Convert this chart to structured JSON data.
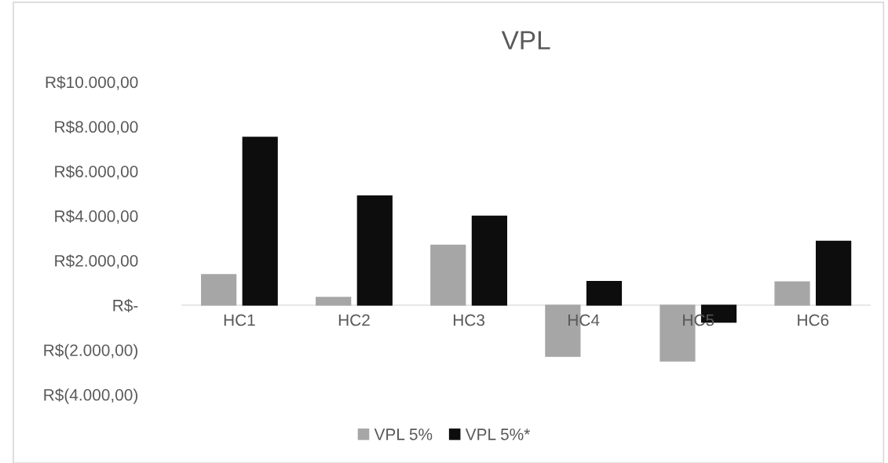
{
  "chart_data": {
    "type": "bar",
    "title": "VPL",
    "categories": [
      "HC1",
      "HC2",
      "HC3",
      "HC4",
      "HC5",
      "HC6"
    ],
    "series": [
      {
        "name": "VPL 5%",
        "color": "#a6a6a6",
        "values": [
          1370,
          350,
          2690,
          -2290,
          -2500,
          1040
        ]
      },
      {
        "name": "VPL 5%*",
        "color": "#0d0d0d",
        "values": [
          7520,
          4890,
          3990,
          1060,
          -760,
          2860
        ]
      }
    ],
    "ylim": [
      -4000,
      10000
    ],
    "yticks": [
      {
        "value": 10000,
        "label": "R$10.000,00"
      },
      {
        "value": 8000,
        "label": "R$8.000,00"
      },
      {
        "value": 6000,
        "label": "R$6.000,00"
      },
      {
        "value": 4000,
        "label": "R$4.000,00"
      },
      {
        "value": 2000,
        "label": "R$2.000,00"
      },
      {
        "value": 0,
        "label": "R$-"
      },
      {
        "value": -2000,
        "label": "R$(2.000,00)"
      },
      {
        "value": -4000,
        "label": "R$(4.000,00)"
      }
    ],
    "grid": false,
    "legend": "bottom"
  }
}
